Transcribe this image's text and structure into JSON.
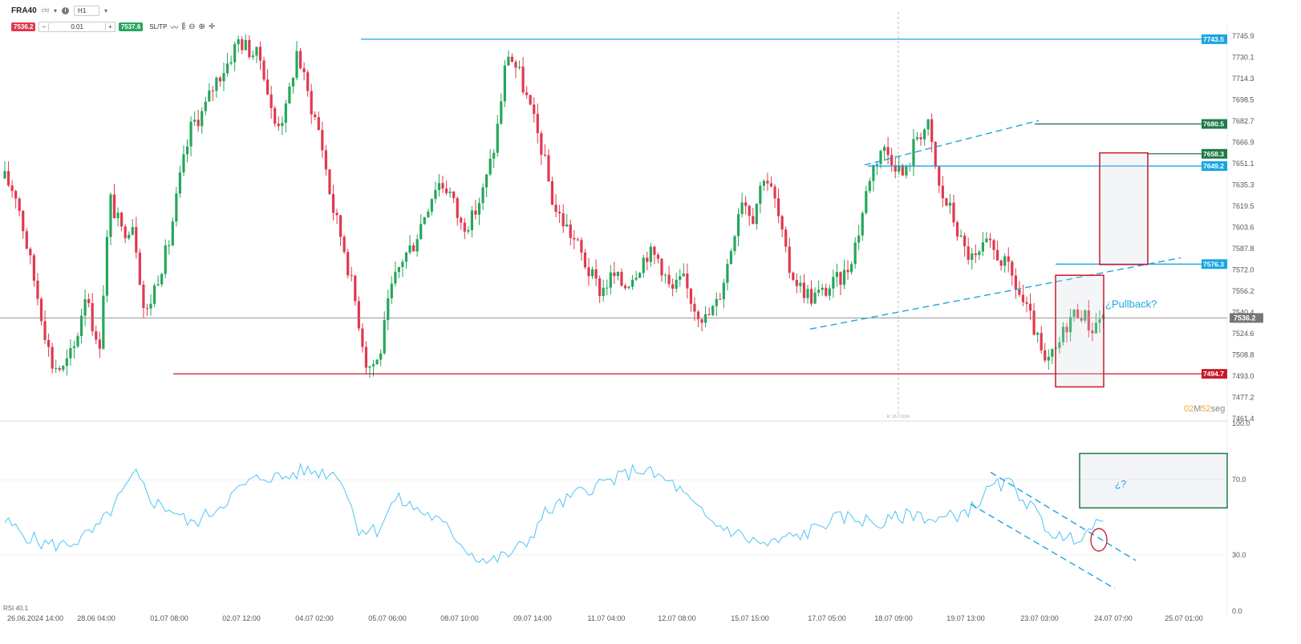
{
  "toolbar": {
    "symbol": "FRA40",
    "symbol_sub": "cfd",
    "timeframe": "H1",
    "sell_price": "7536.2",
    "buy_price": "7537.6",
    "lot_value": "0.01",
    "sltp_label": "SL/TP",
    "minus_label": "−",
    "plus_label": "+"
  },
  "colors": {
    "up": "#26a65b",
    "down": "#e0394f",
    "blue_line": "#1aa6e0",
    "red_line": "#c8192a",
    "green_line": "#1f7a4a",
    "rsi_line": "#4fc3f7",
    "box_red": "#c8192a",
    "box_green": "#1f7a4a"
  },
  "chart_data": [
    {
      "type": "candlestick",
      "title": "",
      "ylim": [
        7461.4,
        7750
      ],
      "yticks": [
        "7745.9",
        "7730.1",
        "7714.3",
        "7698.5",
        "7682.7",
        "7666.9",
        "7651.1",
        "7635.3",
        "7619.5",
        "7603.6",
        "7587.8",
        "7572.0",
        "7556.2",
        "7540.4",
        "7524.6",
        "7508.8",
        "7493.0",
        "7477.2",
        "7461.4"
      ],
      "xticks": [
        "26.06.2024 14:00",
        "28.06 04:00",
        "01.07 08:00",
        "02.07 12:00",
        "04.07 02:00",
        "05.07 06:00",
        "08.07 10:00",
        "09.07 14:00",
        "11.07 04:00",
        "12.07 08:00",
        "15.07 15:00",
        "17.07 05:00",
        "18.07 09:00",
        "19.07 13:00",
        "23.07 03:00",
        "24.07 07:00",
        "25.07 01:00"
      ],
      "close_path": [
        7640,
        7628,
        7585,
        7545,
        7502,
        7498,
        7515,
        7560,
        7505,
        7625,
        7600,
        7608,
        7535,
        7565,
        7590,
        7640,
        7680,
        7690,
        7712,
        7725,
        7743,
        7735,
        7728,
        7680,
        7688,
        7735,
        7700,
        7672,
        7620,
        7590,
        7548,
        7500,
        7505,
        7555,
        7580,
        7592,
        7616,
        7638,
        7632,
        7605,
        7610,
        7632,
        7668,
        7735,
        7718,
        7690,
        7660,
        7618,
        7605,
        7590,
        7570,
        7556,
        7568,
        7560,
        7572,
        7585,
        7580,
        7555,
        7565,
        7545,
        7535,
        7548,
        7582,
        7628,
        7612,
        7645,
        7620,
        7575,
        7560,
        7552,
        7555,
        7562,
        7570,
        7598,
        7642,
        7663,
        7655,
        7640,
        7672,
        7679,
        7630,
        7615,
        7588,
        7578,
        7590,
        7583,
        7570,
        7550,
        7530,
        7500,
        7512,
        7535,
        7543,
        7528,
        7540
      ],
      "current_price": "7536.2",
      "horizontal_levels": [
        {
          "label": "7743.5",
          "value": 7743.5,
          "kind": "blue"
        },
        {
          "label": "7680.5",
          "value": 7680.5,
          "kind": "green"
        },
        {
          "label": "7658.3",
          "value": 7658.3,
          "kind": "green"
        },
        {
          "label": "7649.2",
          "value": 7649.2,
          "kind": "blue"
        },
        {
          "label": "7576.3",
          "value": 7576.3,
          "kind": "blue"
        },
        {
          "label": "7494.7",
          "value": 7494.7,
          "kind": "red"
        }
      ],
      "annotations": [
        "¿Pullback?"
      ],
      "date_marker": "R: 18.7.2024",
      "timer": {
        "prefix": "02",
        "m": "M",
        "seconds": "52",
        "suffix": "seg"
      }
    },
    {
      "type": "line",
      "title": "",
      "legend": "RSI 40.1",
      "ylim": [
        0,
        100
      ],
      "yticks": [
        "100.0",
        "70.0",
        "30.0",
        "0.0"
      ],
      "annotations": [
        "¿?"
      ]
    }
  ]
}
